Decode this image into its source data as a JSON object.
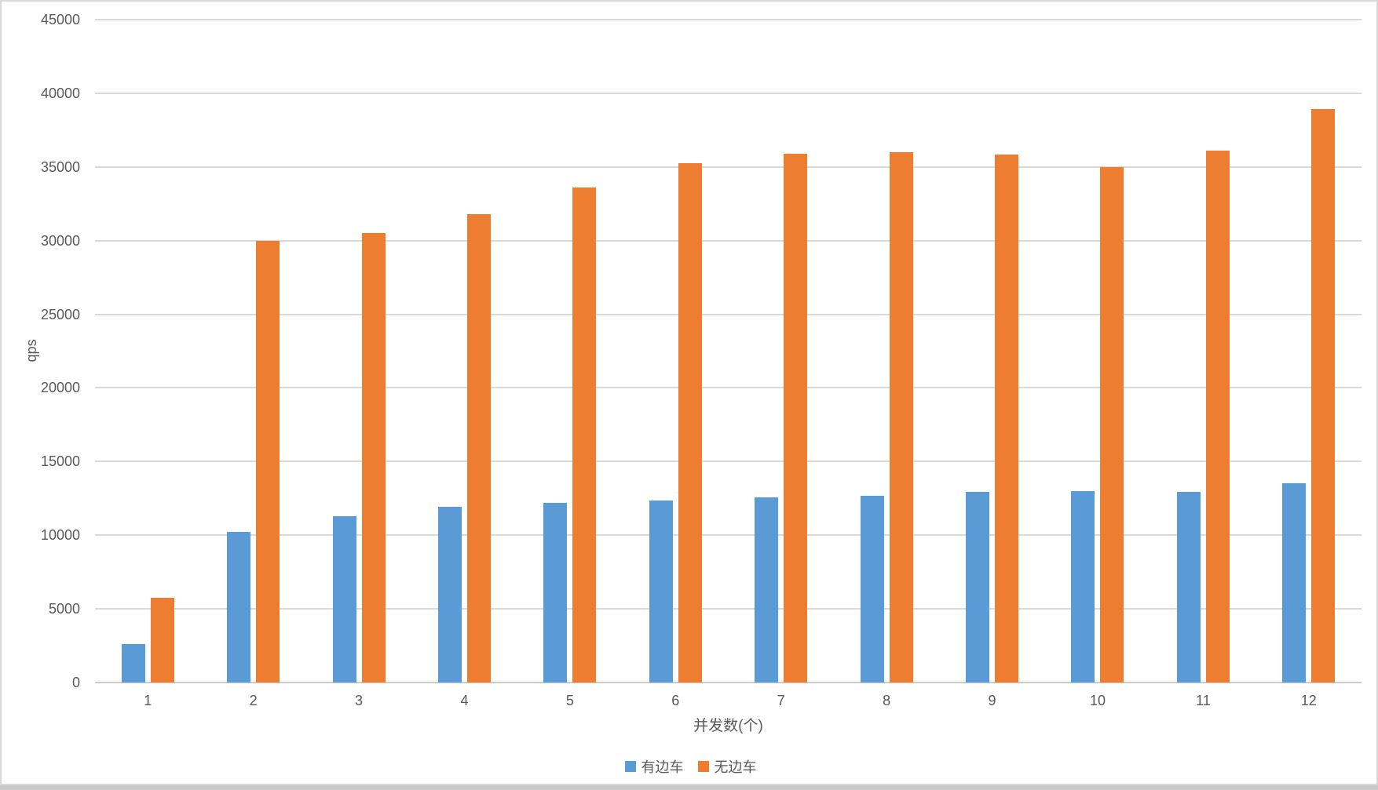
{
  "chart_data": {
    "type": "bar",
    "title": "",
    "xlabel": "并发数(个)",
    "ylabel": "qps",
    "categories": [
      "1",
      "2",
      "3",
      "4",
      "5",
      "6",
      "7",
      "8",
      "9",
      "10",
      "11",
      "12"
    ],
    "series": [
      {
        "name": "有边车",
        "color": "#5B9BD5",
        "values": [
          2600,
          10200,
          11300,
          11950,
          12200,
          12350,
          12550,
          12700,
          12950,
          13000,
          12950,
          13550
        ]
      },
      {
        "name": "无边车",
        "color": "#ED7D31",
        "values": [
          5750,
          30000,
          30500,
          31800,
          33600,
          35250,
          35900,
          36000,
          35850,
          35000,
          36100,
          38950
        ]
      }
    ],
    "ylim": [
      0,
      45000
    ],
    "ytick_step": 5000,
    "ytick_labels": [
      "0",
      "5000",
      "10000",
      "15000",
      "20000",
      "25000",
      "30000",
      "35000",
      "40000",
      "45000"
    ],
    "grid": true,
    "legend_position": "bottom-center"
  },
  "colors": {
    "card_background": "#FFFFFF",
    "card_border": "#D9D9D9",
    "gridline": "#D9D9D9",
    "axis_line": "#CCCCCC",
    "label_text": "#595959",
    "bottom_strip": "#C9C9C9"
  }
}
